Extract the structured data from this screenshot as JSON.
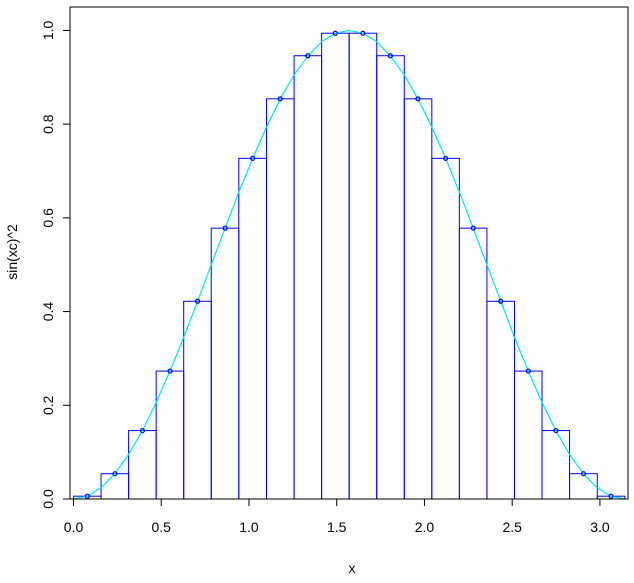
{
  "chart_data": {
    "type": "midpoint-rectangles",
    "x_label": "x",
    "y_label": "sin(xc)^2",
    "xlim": [
      -0.02,
      3.16
    ],
    "ylim": [
      0,
      1.05
    ],
    "xticks": [
      {
        "value": 0,
        "label": "0.0"
      },
      {
        "value": 0.5,
        "label": "0.5"
      },
      {
        "value": 1,
        "label": "1.0"
      },
      {
        "value": 1.5,
        "label": "1.5"
      },
      {
        "value": 2,
        "label": "2.0"
      },
      {
        "value": 2.5,
        "label": "2.5"
      },
      {
        "value": 3,
        "label": "3.0"
      }
    ],
    "yticks": [
      {
        "value": 0,
        "label": "0.0"
      },
      {
        "value": 0.2,
        "label": "0.2"
      },
      {
        "value": 0.4,
        "label": "0.4"
      },
      {
        "value": 0.6,
        "label": "0.6"
      },
      {
        "value": 0.8,
        "label": "0.8"
      },
      {
        "value": 1,
        "label": "1.0"
      }
    ],
    "rect_color": "#0000ff",
    "point_color": "#0000ff",
    "curve_color": "#00e5ee",
    "bins": [
      0,
      0.157,
      0.314,
      0.471,
      0.628,
      0.785,
      0.942,
      1.1,
      1.257,
      1.414,
      1.571,
      1.728,
      1.885,
      2.042,
      2.199,
      2.356,
      2.513,
      2.67,
      2.827,
      2.985,
      3.142
    ],
    "x": [
      0.079,
      0.236,
      0.393,
      0.55,
      0.707,
      0.864,
      1.021,
      1.178,
      1.335,
      1.492,
      1.649,
      1.806,
      1.963,
      2.121,
      2.278,
      2.435,
      2.592,
      2.749,
      2.906,
      3.063
    ],
    "values": [
      0.006,
      0.054,
      0.146,
      0.273,
      0.422,
      0.578,
      0.727,
      0.854,
      0.946,
      0.994,
      0.994,
      0.946,
      0.854,
      0.727,
      0.578,
      0.422,
      0.273,
      0.146,
      0.054,
      0.006
    ],
    "curve": {
      "x": [
        0,
        0.079,
        0.157,
        0.236,
        0.314,
        0.393,
        0.471,
        0.55,
        0.628,
        0.707,
        0.785,
        0.864,
        0.942,
        1.021,
        1.1,
        1.178,
        1.257,
        1.335,
        1.414,
        1.492,
        1.571,
        1.649,
        1.728,
        1.806,
        1.885,
        1.963,
        2.042,
        2.121,
        2.199,
        2.278,
        2.356,
        2.435,
        2.513,
        2.592,
        2.67,
        2.749,
        2.827,
        2.906,
        2.985,
        3.063,
        3.142
      ],
      "values": [
        0,
        0.006,
        0.024,
        0.054,
        0.095,
        0.146,
        0.206,
        0.273,
        0.345,
        0.422,
        0.5,
        0.578,
        0.655,
        0.727,
        0.794,
        0.854,
        0.905,
        0.945,
        0.976,
        0.994,
        1,
        0.994,
        0.976,
        0.945,
        0.905,
        0.854,
        0.794,
        0.727,
        0.655,
        0.578,
        0.5,
        0.422,
        0.345,
        0.273,
        0.206,
        0.146,
        0.095,
        0.054,
        0.024,
        0.006,
        0
      ]
    }
  }
}
